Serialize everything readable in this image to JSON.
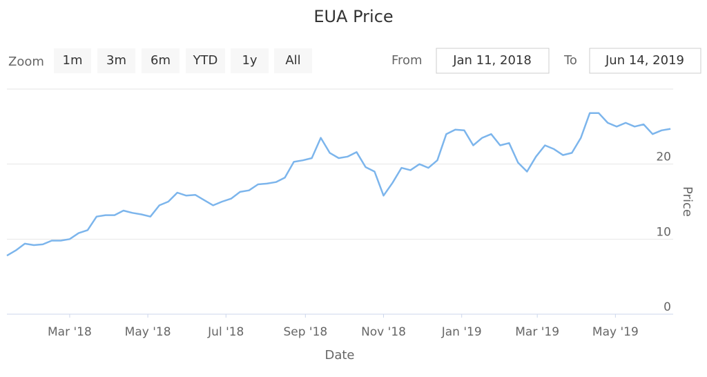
{
  "chart_data": {
    "type": "line",
    "title": "EUA Price",
    "zoom_label": "Zoom",
    "zoom_buttons": [
      "1m",
      "3m",
      "6m",
      "YTD",
      "1y",
      "All"
    ],
    "from_label": "From",
    "from_value": "Jan 11, 2018",
    "to_label": "To",
    "to_value": "Jun 14, 2019",
    "x_label": "Date",
    "y_label": "Price",
    "x": [
      "2018-01-11",
      "2018-01-18",
      "2018-01-25",
      "2018-02-01",
      "2018-02-08",
      "2018-02-15",
      "2018-02-22",
      "2018-03-01",
      "2018-03-08",
      "2018-03-15",
      "2018-03-22",
      "2018-03-29",
      "2018-04-05",
      "2018-04-12",
      "2018-04-19",
      "2018-04-26",
      "2018-05-03",
      "2018-05-10",
      "2018-05-17",
      "2018-05-24",
      "2018-05-31",
      "2018-06-07",
      "2018-06-14",
      "2018-06-21",
      "2018-06-28",
      "2018-07-05",
      "2018-07-12",
      "2018-07-19",
      "2018-07-26",
      "2018-08-02",
      "2018-08-09",
      "2018-08-16",
      "2018-08-23",
      "2018-08-30",
      "2018-09-06",
      "2018-09-13",
      "2018-09-20",
      "2018-09-27",
      "2018-10-04",
      "2018-10-11",
      "2018-10-18",
      "2018-10-25",
      "2018-11-01",
      "2018-11-08",
      "2018-11-15",
      "2018-11-22",
      "2018-11-29",
      "2018-12-06",
      "2018-12-13",
      "2018-12-20",
      "2018-12-27",
      "2019-01-03",
      "2019-01-10",
      "2019-01-17",
      "2019-01-24",
      "2019-01-31",
      "2019-02-07",
      "2019-02-14",
      "2019-02-21",
      "2019-02-28",
      "2019-03-07",
      "2019-03-14",
      "2019-03-21",
      "2019-03-28",
      "2019-04-04",
      "2019-04-11",
      "2019-04-18",
      "2019-04-25",
      "2019-05-02",
      "2019-05-09",
      "2019-05-16",
      "2019-05-23",
      "2019-05-30",
      "2019-06-06",
      "2019-06-13"
    ],
    "series": [
      {
        "name": "Price",
        "color": "#7cb5ec",
        "values": [
          7.8,
          8.5,
          9.4,
          9.2,
          9.3,
          9.8,
          9.8,
          10.0,
          10.8,
          11.2,
          13.0,
          13.2,
          13.2,
          13.8,
          13.5,
          13.3,
          13.0,
          14.5,
          15.0,
          16.2,
          15.8,
          15.9,
          15.2,
          14.5,
          15.0,
          15.4,
          16.3,
          16.5,
          17.3,
          17.4,
          17.6,
          18.2,
          20.3,
          20.5,
          20.8,
          23.5,
          21.5,
          20.8,
          21.0,
          21.6,
          19.6,
          19.0,
          15.8,
          17.5,
          19.5,
          19.2,
          20.0,
          19.5,
          20.5,
          24.0,
          24.6,
          24.5,
          22.5,
          23.5,
          24.0,
          22.5,
          22.8,
          20.2,
          19.0,
          21.0,
          22.5,
          22.0,
          21.2,
          21.5,
          23.5,
          26.8,
          26.8,
          25.5,
          25.0,
          25.5,
          25.0,
          25.3,
          24.0,
          24.5,
          24.7
        ]
      }
    ],
    "xlim": [
      "2018-01-11",
      "2019-06-14"
    ],
    "xticks": [
      {
        "value": "2018-03-01",
        "label": "Mar '18"
      },
      {
        "value": "2018-05-01",
        "label": "May '18"
      },
      {
        "value": "2018-07-01",
        "label": "Jul '18"
      },
      {
        "value": "2018-09-01",
        "label": "Sep '18"
      },
      {
        "value": "2018-11-01",
        "label": "Nov '18"
      },
      {
        "value": "2019-01-01",
        "label": "Jan '19"
      },
      {
        "value": "2019-03-01",
        "label": "Mar '19"
      },
      {
        "value": "2019-05-01",
        "label": "May '19"
      }
    ],
    "ylim": [
      0,
      30
    ],
    "yticks": [
      0,
      10,
      20
    ],
    "grid": true
  }
}
